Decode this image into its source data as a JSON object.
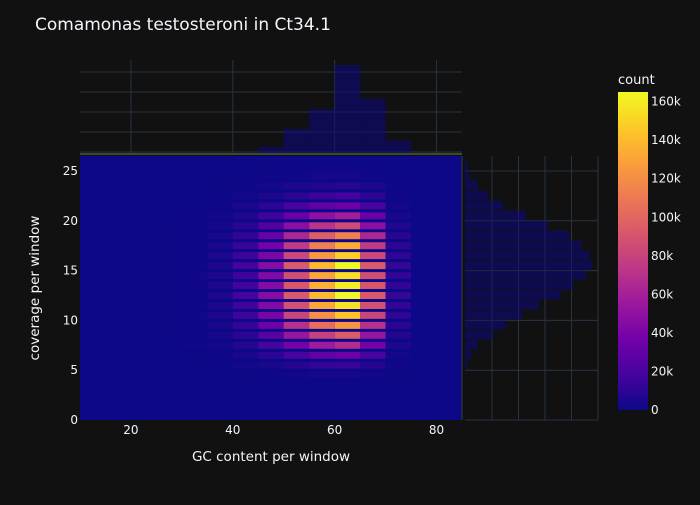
{
  "chart_data": {
    "type": "heatmap",
    "title": "Comamonas testosteroni in Ct34.1",
    "xlabel": "GC content per window",
    "ylabel": "coverage per window",
    "xlim": [
      10,
      85
    ],
    "ylim": [
      0,
      26.5
    ],
    "x_ticks": [
      20,
      40,
      60,
      80
    ],
    "y_ticks": [
      0,
      5,
      10,
      15,
      20,
      25
    ],
    "x_bin_width": 5,
    "y_bin_height": 1,
    "x_bins": [
      10,
      15,
      20,
      25,
      30,
      35,
      40,
      45,
      50,
      55,
      60,
      65,
      70,
      75,
      80
    ],
    "y_bins": [
      0,
      1,
      2,
      3,
      4,
      5,
      6,
      7,
      8,
      9,
      10,
      11,
      12,
      13,
      14,
      15,
      16,
      17,
      18,
      19,
      20,
      21,
      22,
      23,
      24,
      25
    ],
    "x_weights": [
      0,
      0,
      0.01,
      0.02,
      0.05,
      0.12,
      0.25,
      0.45,
      0.7,
      0.9,
      1.0,
      0.7,
      0.2,
      0,
      0
    ],
    "y_weights": [
      0,
      0,
      0,
      0,
      0.05,
      0.15,
      0.3,
      0.5,
      0.65,
      0.8,
      0.9,
      0.96,
      1.0,
      0.98,
      0.95,
      1.0,
      0.92,
      0.85,
      0.75,
      0.6,
      0.45,
      0.3,
      0.18,
      0.1,
      0.05,
      0.02
    ],
    "z_max": 165000,
    "colorbar": {
      "title": "count",
      "ticks": [
        "0",
        "20k",
        "40k",
        "60k",
        "80k",
        "100k",
        "120k",
        "140k",
        "160k"
      ],
      "tick_values": [
        0,
        20000,
        40000,
        60000,
        80000,
        100000,
        120000,
        140000,
        160000
      ],
      "range": [
        0,
        165000
      ]
    },
    "marginal_x": {
      "type": "histogram",
      "values": [
        0,
        0,
        0,
        0,
        0,
        0,
        0.02,
        0.08,
        0.28,
        0.5,
        1.0,
        0.62,
        0.15,
        0,
        0
      ]
    },
    "marginal_y": {
      "type": "histogram",
      "values": [
        0,
        0,
        0,
        0,
        0,
        0.02,
        0.05,
        0.1,
        0.22,
        0.32,
        0.45,
        0.58,
        0.75,
        0.85,
        0.95,
        1.0,
        0.98,
        0.92,
        0.82,
        0.65,
        0.48,
        0.3,
        0.18,
        0.1,
        0.04,
        0.02
      ]
    },
    "colorscale": [
      "#0d0887",
      "#46039f",
      "#7201a8",
      "#9c179e",
      "#bd3786",
      "#d8576b",
      "#ed7953",
      "#fb9f3a",
      "#fdca26",
      "#f0f921"
    ],
    "colors": {
      "background": "#111111",
      "grid": "#283442",
      "text": "#f2f5fa"
    }
  }
}
